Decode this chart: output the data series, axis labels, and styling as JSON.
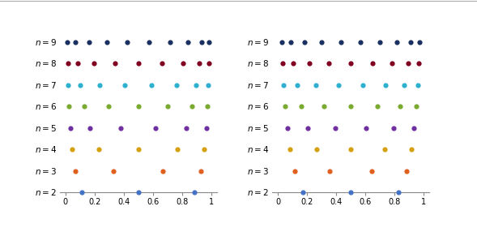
{
  "n_values": [
    2,
    3,
    4,
    5,
    6,
    7,
    8,
    9
  ],
  "colors": {
    "2": "#4472c4",
    "3": "#e06020",
    "4": "#d4a010",
    "5": "#7030a0",
    "6": "#7aaa30",
    "7": "#30b0d0",
    "8": "#800020",
    "9": "#1a3060"
  },
  "xlim": [
    -0.04,
    1.04
  ],
  "xticks": [
    0.0,
    0.2,
    0.4,
    0.6,
    0.8,
    1.0
  ],
  "xtick_labels": [
    "0",
    "0.2",
    "0.4",
    "0.6",
    "0.8",
    "1"
  ],
  "marker_size": 20,
  "background": "#ffffff",
  "label_fontsize": 7.5,
  "tick_fontsize": 7.0
}
